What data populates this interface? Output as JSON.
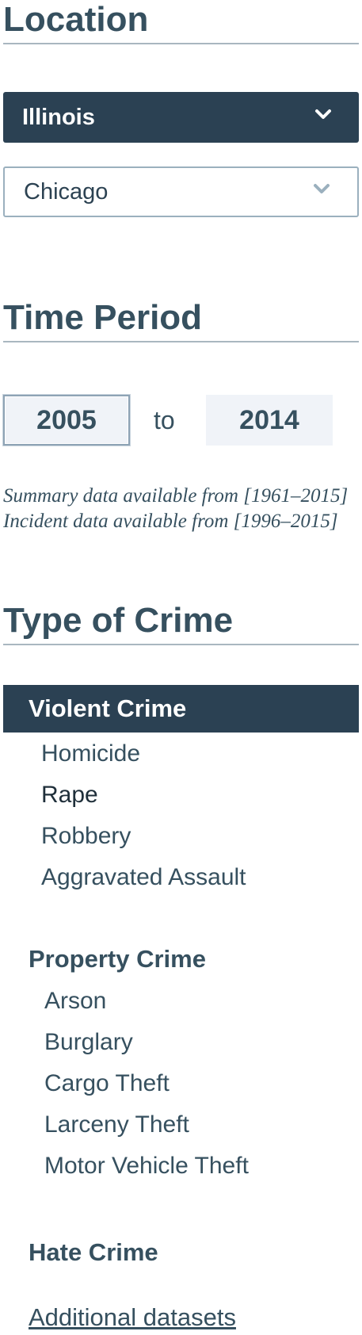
{
  "location": {
    "title": "Location",
    "state_select": {
      "value": "Illinois"
    },
    "city_select": {
      "value": "Chicago"
    }
  },
  "time_period": {
    "title": "Time Period",
    "from_year": "2005",
    "separator": "to",
    "to_year": "2014",
    "summary_note": "Summary data available from [1961–2015]",
    "incident_note": "Incident data available from [1996–2015]"
  },
  "crime_type": {
    "title": "Type of Crime",
    "violent": {
      "label": "Violent Crime",
      "items": [
        "Homicide",
        "Rape",
        "Robbery",
        "Aggravated Assault"
      ]
    },
    "property": {
      "label": "Property Crime",
      "items": [
        "Arson",
        "Burglary",
        "Cargo Theft",
        "Larceny Theft",
        "Motor Vehicle Theft"
      ]
    },
    "hate": {
      "label": "Hate Crime"
    },
    "additional_link": "Additional datasets"
  },
  "icons": {
    "state_select_chevron": "chevron-down-icon",
    "city_select_chevron": "chevron-down-icon"
  },
  "colors": {
    "primary_dark": "#2b4153",
    "text": "#36505f",
    "chevron_light": "#9bb0be"
  }
}
